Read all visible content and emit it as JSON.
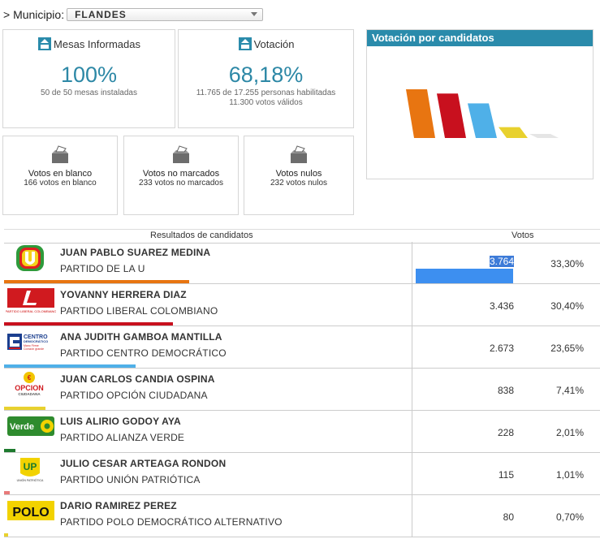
{
  "municipio": {
    "label": "> Municipio:",
    "selected": "FLANDES"
  },
  "kpis": {
    "mesas": {
      "title": "Mesas Informadas",
      "big": "100%",
      "sub1": "50 de 50 mesas instaladas"
    },
    "votacion": {
      "title": "Votación",
      "big": "68,18%",
      "sub1": "11.765 de 17.255 personas habilitadas",
      "sub2": "11.300 votos válidos"
    }
  },
  "chart": {
    "title": "Votación por candidatos",
    "bar_colors": [
      "#e87511",
      "#c8101e",
      "#4fb0e8",
      "#e8d12e",
      "#e5e5e5"
    ]
  },
  "chart_data": {
    "type": "bar",
    "title": "Votación por candidatos",
    "categories": [
      "JUAN PABLO SUAREZ MEDINA",
      "YOVANNY HERRERA DIAZ",
      "ANA JUDITH GAMBOA MANTILLA",
      "JUAN CARLOS CANDIA OSPINA",
      "LUIS ALIRIO GODOY AYA"
    ],
    "values": [
      3764,
      3436,
      2673,
      838,
      228
    ]
  },
  "vote_boxes": [
    {
      "title": "Votos en blanco",
      "sub": "166 votos en blanco",
      "icon": "ballot-box-icon"
    },
    {
      "title": "Votos no marcados",
      "sub": "233 votos no marcados",
      "icon": "ballot-box-icon"
    },
    {
      "title": "Votos nulos",
      "sub": "232 votos nulos",
      "icon": "ballot-box-icon"
    }
  ],
  "results": {
    "header_candidates": "Resultados de candidatos",
    "header_votes": "Votos",
    "rows": [
      {
        "name": "JUAN PABLO SUAREZ MEDINA",
        "party": "PARTIDO DE LA U",
        "votes": "3.764",
        "pct": "33,30%",
        "color": "#e87511",
        "logo": "partido-de-la-u-logo",
        "share": 0.333
      },
      {
        "name": "YOVANNY HERRERA DIAZ",
        "party": "PARTIDO LIBERAL COLOMBIANO",
        "votes": "3.436",
        "pct": "30,40%",
        "color": "#c8101e",
        "logo": "partido-liberal-logo",
        "share": 0.304
      },
      {
        "name": "ANA JUDITH GAMBOA MANTILLA",
        "party": "PARTIDO CENTRO DEMOCRÁTICO",
        "votes": "2.673",
        "pct": "23,65%",
        "color": "#4fb0e8",
        "logo": "centro-democratico-logo",
        "share": 0.2365
      },
      {
        "name": "JUAN CARLOS CANDIA OSPINA",
        "party": "PARTIDO OPCIÓN CIUDADANA",
        "votes": "838",
        "pct": "7,41%",
        "color": "#e8d12e",
        "logo": "opcion-ciudadana-logo",
        "share": 0.0741
      },
      {
        "name": "LUIS ALIRIO GODOY AYA",
        "party": "PARTIDO ALIANZA VERDE",
        "votes": "228",
        "pct": "2,01%",
        "color": "#1e7a2e",
        "logo": "alianza-verde-logo",
        "share": 0.0201
      },
      {
        "name": "JULIO CESAR ARTEAGA RONDON",
        "party": "PARTIDO UNIÓN PATRIÓTICA",
        "votes": "115",
        "pct": "1,01%",
        "color": "#e87a7a",
        "logo": "union-patriotica-logo",
        "share": 0.0101
      },
      {
        "name": "DARIO RAMIREZ PEREZ",
        "party": "PARTIDO POLO DEMOCRÁTICO ALTERNATIVO",
        "votes": "80",
        "pct": "0,70%",
        "color": "#e8d12e",
        "logo": "polo-democratico-logo",
        "share": 0.007
      }
    ]
  }
}
